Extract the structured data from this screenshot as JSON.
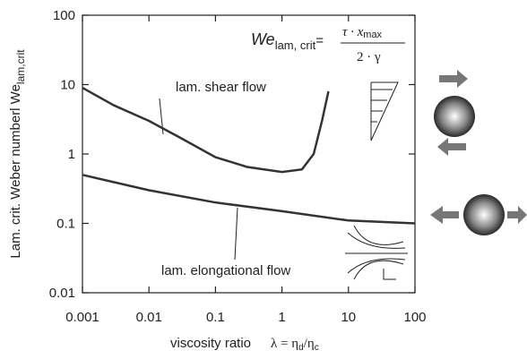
{
  "chart_data": {
    "type": "line",
    "x_label": {
      "text": "viscosity ratio",
      "symbol": "λ = η",
      "sub1": "d",
      "mid": "/η",
      "sub2": "c"
    },
    "y_label": {
      "text": "Lam. crit. Weber numberl We",
      "sub": "lam,crit"
    },
    "formula": {
      "lhs": "We",
      "lhs_sub": "lam, crit",
      "eq": "=",
      "num": "τ · x",
      "num_sub": "max",
      "den": "2 · γ"
    },
    "log_x": true,
    "log_y": true,
    "xlim": [
      0.001,
      100
    ],
    "ylim": [
      0.01,
      100
    ],
    "xticks": [
      0.001,
      0.01,
      0.1,
      1,
      10,
      100
    ],
    "yticks": [
      0.01,
      0.1,
      1,
      10,
      100
    ],
    "series": [
      {
        "name": "lam. shear flow",
        "color": "#333333",
        "x": [
          0.001,
          0.003,
          0.01,
          0.03,
          0.1,
          0.3,
          1,
          2,
          3,
          4,
          5
        ],
        "values": [
          9,
          5,
          3,
          1.7,
          0.9,
          0.65,
          0.55,
          0.6,
          1,
          3,
          8
        ]
      },
      {
        "name": "lam. elongational flow",
        "color": "#333333",
        "x": [
          0.001,
          0.01,
          0.1,
          1,
          10,
          100
        ],
        "values": [
          0.5,
          0.3,
          0.2,
          0.15,
          0.11,
          0.1
        ]
      }
    ]
  }
}
